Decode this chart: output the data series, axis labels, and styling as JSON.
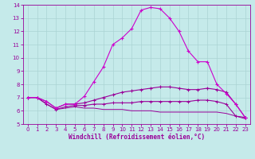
{
  "title": "",
  "xlabel": "Windchill (Refroidissement éolien,°C)",
  "ylabel": "",
  "bg_color": "#c5eaea",
  "grid_color": "#aad4d4",
  "line_color1": "#cc00cc",
  "line_color2": "#990099",
  "xlim": [
    -0.5,
    23.5
  ],
  "ylim": [
    5,
    14
  ],
  "xticks": [
    0,
    1,
    2,
    3,
    4,
    5,
    6,
    7,
    8,
    9,
    10,
    11,
    12,
    13,
    14,
    15,
    16,
    17,
    18,
    19,
    20,
    21,
    22,
    23
  ],
  "yticks": [
    5,
    6,
    7,
    8,
    9,
    10,
    11,
    12,
    13,
    14
  ],
  "curve1_x": [
    0,
    1,
    2,
    3,
    4,
    5,
    6,
    7,
    8,
    9,
    10,
    11,
    12,
    13,
    14,
    15,
    16,
    17,
    18,
    19,
    20,
    21,
    22,
    23
  ],
  "curve1_y": [
    7.0,
    7.0,
    6.7,
    6.2,
    6.5,
    6.5,
    7.1,
    8.2,
    9.3,
    11.0,
    11.5,
    12.2,
    13.6,
    13.8,
    13.7,
    13.0,
    12.0,
    10.5,
    9.7,
    9.7,
    8.0,
    7.3,
    6.5,
    5.5
  ],
  "curve2_x": [
    0,
    1,
    2,
    3,
    4,
    5,
    6,
    7,
    8,
    9,
    10,
    11,
    12,
    13,
    14,
    15,
    16,
    17,
    18,
    19,
    20,
    21,
    22,
    23
  ],
  "curve2_y": [
    7.0,
    7.0,
    6.7,
    6.2,
    6.5,
    6.5,
    6.6,
    6.8,
    7.0,
    7.2,
    7.4,
    7.5,
    7.6,
    7.7,
    7.8,
    7.8,
    7.7,
    7.6,
    7.6,
    7.7,
    7.6,
    7.4,
    6.5,
    5.5
  ],
  "curve3_x": [
    0,
    1,
    2,
    3,
    4,
    5,
    6,
    7,
    8,
    9,
    10,
    11,
    12,
    13,
    14,
    15,
    16,
    17,
    18,
    19,
    20,
    21,
    22,
    23
  ],
  "curve3_y": [
    7.0,
    7.0,
    6.5,
    6.1,
    6.3,
    6.4,
    6.4,
    6.5,
    6.5,
    6.6,
    6.6,
    6.6,
    6.7,
    6.7,
    6.7,
    6.7,
    6.7,
    6.7,
    6.8,
    6.8,
    6.7,
    6.5,
    5.6,
    5.5
  ],
  "curve4_x": [
    0,
    1,
    2,
    3,
    4,
    5,
    6,
    7,
    8,
    9,
    10,
    11,
    12,
    13,
    14,
    15,
    16,
    17,
    18,
    19,
    20,
    21,
    22,
    23
  ],
  "curve4_y": [
    7.0,
    7.0,
    6.5,
    6.1,
    6.2,
    6.3,
    6.2,
    6.2,
    6.1,
    6.1,
    6.1,
    6.0,
    6.0,
    6.0,
    5.9,
    5.9,
    5.9,
    5.9,
    5.9,
    5.9,
    5.9,
    5.8,
    5.6,
    5.4
  ]
}
